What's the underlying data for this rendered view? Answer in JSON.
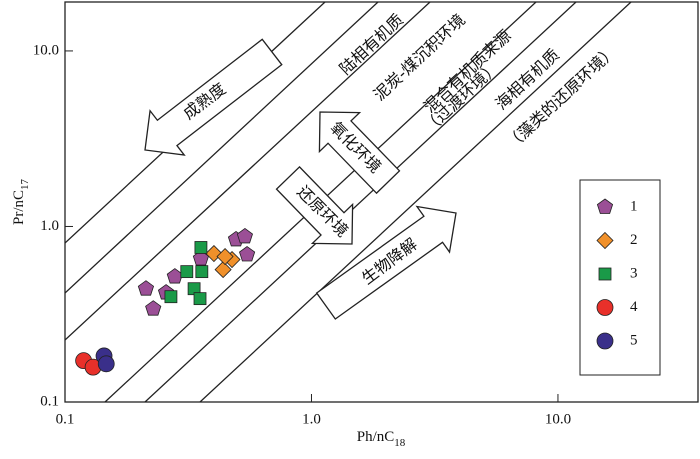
{
  "chart_data": {
    "type": "scatter",
    "x_label": {
      "base": "Ph/nC",
      "subscript": "18"
    },
    "y_label": {
      "base": "Pr/nC",
      "subscript": "17"
    },
    "xscale": "log",
    "yscale": "log",
    "xlim": [
      0.1,
      37
    ],
    "ylim": [
      0.1,
      19
    ],
    "xticks": [
      0.1,
      {
        "value": 1,
        "label": "1.0"
      },
      {
        "value": 10,
        "label": "10.0"
      }
    ],
    "yticks": [
      0.1,
      {
        "value": 1,
        "label": "1.0"
      },
      {
        "value": 10,
        "label": "10.0"
      }
    ],
    "legend": "right",
    "annotations": [
      "陆相有机质",
      "泥炭-煤沉积环境",
      "混合有机质来源",
      "（过渡环境）",
      "海相有机质",
      "（藻类的还原环境）",
      "成熟度",
      "氧化环境",
      "还原环境",
      "生物降解"
    ],
    "series": [
      {
        "name": "1",
        "marker": "pentagon",
        "color": "#9b4f96",
        "x": [
          0.213,
          0.228,
          0.257,
          0.279,
          0.356,
          0.494,
          0.537,
          0.548
        ],
        "values": [
          0.442,
          0.34,
          0.42,
          0.518,
          0.656,
          0.843,
          0.877,
          0.692
        ]
      },
      {
        "name": "2",
        "marker": "diamond",
        "color": "#f0902a",
        "x": [
          0.402,
          0.438,
          0.476,
          0.446
        ],
        "values": [
          0.701,
          0.568,
          0.648,
          0.674
        ]
      },
      {
        "name": "3",
        "marker": "square",
        "color": "#1a9a48",
        "x": [
          0.269,
          0.312,
          0.334,
          0.356,
          0.359,
          0.353
        ],
        "values": [
          0.398,
          0.553,
          0.442,
          0.759,
          0.553,
          0.388
        ]
      },
      {
        "name": "4",
        "marker": "circle",
        "color": "#e8302a",
        "x": [
          0.119,
          0.13
        ],
        "values": [
          0.172,
          0.158
        ]
      },
      {
        "name": "5",
        "marker": "circle",
        "color": "#3a2f8a",
        "x": [
          0.144,
          0.147
        ],
        "values": [
          0.183,
          0.165
        ]
      }
    ]
  }
}
